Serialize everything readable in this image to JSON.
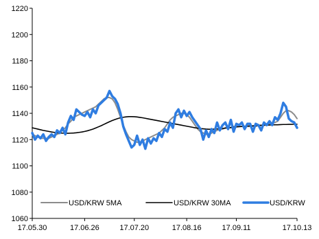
{
  "chart_data": {
    "type": "line",
    "title": "",
    "xlabel": "",
    "ylabel": "",
    "ylim": [
      1060,
      1220
    ],
    "yticks": [
      1060,
      1080,
      1100,
      1120,
      1140,
      1160,
      1180,
      1200,
      1220
    ],
    "ytick_labels": [
      "1060",
      "1080",
      "1100",
      "1120",
      "1140",
      "1160",
      "1180",
      "1200",
      "1220"
    ],
    "xtick_labels": [
      "17.05.30",
      "17.06.26",
      "17.07.20",
      "17.08.16",
      "17.09.11",
      "17.10.13"
    ],
    "xtick_index": [
      0,
      19,
      37,
      56,
      74,
      96
    ],
    "grid": false,
    "legend_position": "bottom",
    "series": [
      {
        "name": "USD/KRW 5MA",
        "color": "#8c8c8c",
        "width": 2,
        "values": [
          1124,
          1123,
          1122,
          1121,
          1121,
          1121,
          1121,
          1122,
          1123,
          1124,
          1125,
          1127,
          1129,
          1132,
          1134,
          1137,
          1138,
          1139,
          1140,
          1141,
          1142,
          1143,
          1144,
          1145,
          1147,
          1149,
          1151,
          1152,
          1152,
          1151,
          1148,
          1143,
          1137,
          1131,
          1126,
          1122,
          1120,
          1119,
          1118,
          1118,
          1119,
          1120,
          1121,
          1122,
          1123,
          1124,
          1125,
          1127,
          1129,
          1132,
          1135,
          1137,
          1138,
          1139,
          1140,
          1140,
          1139,
          1137,
          1134,
          1131,
          1128,
          1126,
          1125,
          1124,
          1124,
          1125,
          1126,
          1127,
          1128,
          1128,
          1129,
          1129,
          1129,
          1130,
          1130,
          1130,
          1130,
          1130,
          1130,
          1130,
          1130,
          1130,
          1131,
          1131,
          1131,
          1132,
          1132,
          1133,
          1133,
          1134,
          1137,
          1140,
          1142,
          1142,
          1141,
          1139,
          1136
        ]
      },
      {
        "name": "USD/KRW 30MA",
        "color": "#000000",
        "width": 1.6,
        "values": [
          1129,
          1128.5,
          1128,
          1127.5,
          1127,
          1126.6,
          1126.2,
          1125.8,
          1125.5,
          1125.2,
          1125,
          1124.9,
          1124.8,
          1124.8,
          1124.9,
          1125,
          1125.2,
          1125.5,
          1125.8,
          1126.2,
          1126.7,
          1127.3,
          1128,
          1128.8,
          1129.7,
          1130.6,
          1131.6,
          1132.6,
          1133.6,
          1134.5,
          1135.3,
          1136,
          1136.6,
          1137,
          1137.3,
          1137.5,
          1137.5,
          1137.4,
          1137.2,
          1136.9,
          1136.6,
          1136.2,
          1135.8,
          1135.4,
          1135,
          1134.6,
          1134.2,
          1133.8,
          1133.4,
          1133,
          1132.6,
          1132.2,
          1131.8,
          1131.4,
          1131,
          1130.6,
          1130.2,
          1129.8,
          1129.4,
          1129,
          1128.7,
          1128.4,
          1128.2,
          1128,
          1127.9,
          1127.9,
          1128,
          1128.1,
          1128.3,
          1128.5,
          1128.7,
          1129,
          1129.2,
          1129.4,
          1129.6,
          1129.8,
          1130,
          1130.1,
          1130.3,
          1130.4,
          1130.5,
          1130.6,
          1130.7,
          1130.8,
          1130.9,
          1131,
          1131.1,
          1131.2,
          1131.3,
          1131.3,
          1131.4,
          1131.5,
          1131.5,
          1131.6,
          1131.6,
          1131.7,
          1131.7
        ]
      },
      {
        "name": "USD/KRW",
        "color": "#2f7de1",
        "width": 3.5,
        "values": [
          1125,
          1120,
          1123,
          1121,
          1124,
          1119,
          1122,
          1124,
          1122,
          1127,
          1125,
          1129,
          1124,
          1133,
          1138,
          1135,
          1143,
          1141,
          1139,
          1138,
          1141,
          1137,
          1143,
          1140,
          1146,
          1148,
          1150,
          1152,
          1157,
          1153,
          1151,
          1147,
          1140,
          1130,
          1124,
          1119,
          1114,
          1116,
          1123,
          1116,
          1120,
          1113,
          1121,
          1117,
          1121,
          1119,
          1125,
          1122,
          1128,
          1126,
          1133,
          1129,
          1140,
          1143,
          1137,
          1142,
          1138,
          1141,
          1137,
          1134,
          1131,
          1128,
          1120,
          1127,
          1122,
          1128,
          1125,
          1133,
          1127,
          1131,
          1133,
          1128,
          1135,
          1126,
          1132,
          1131,
          1133,
          1128,
          1132,
          1132,
          1126,
          1132,
          1131,
          1127,
          1133,
          1131,
          1134,
          1131,
          1137,
          1135,
          1140,
          1148,
          1145,
          1136,
          1134,
          1133,
          1129
        ]
      }
    ]
  }
}
